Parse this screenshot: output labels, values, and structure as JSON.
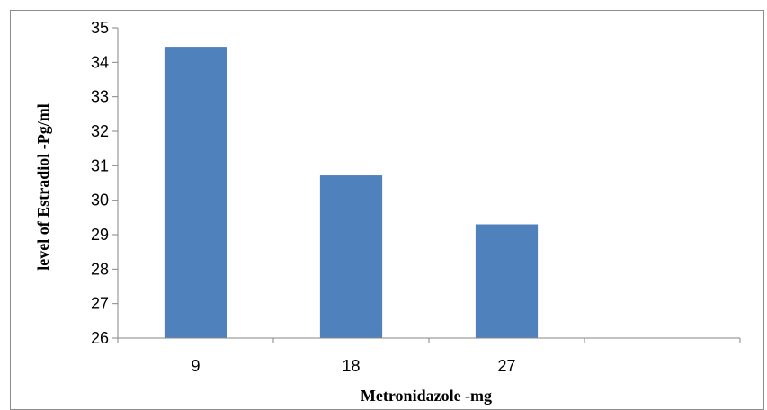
{
  "chart_data": {
    "type": "bar",
    "title": "",
    "xlabel": "Metronidazole -mg",
    "ylabel": "level of Estradiol -Pg/ml",
    "categories": [
      "9",
      "18",
      "27",
      ""
    ],
    "values": [
      34.45,
      30.72,
      29.3,
      null
    ],
    "ylim": [
      26,
      35
    ],
    "yticks": [
      "26",
      "27",
      "28",
      "29",
      "30",
      "31",
      "32",
      "33",
      "34",
      "35"
    ],
    "grid": false,
    "legend": "none",
    "bar_color": "#4f81bd",
    "axis_color": "#868686"
  }
}
